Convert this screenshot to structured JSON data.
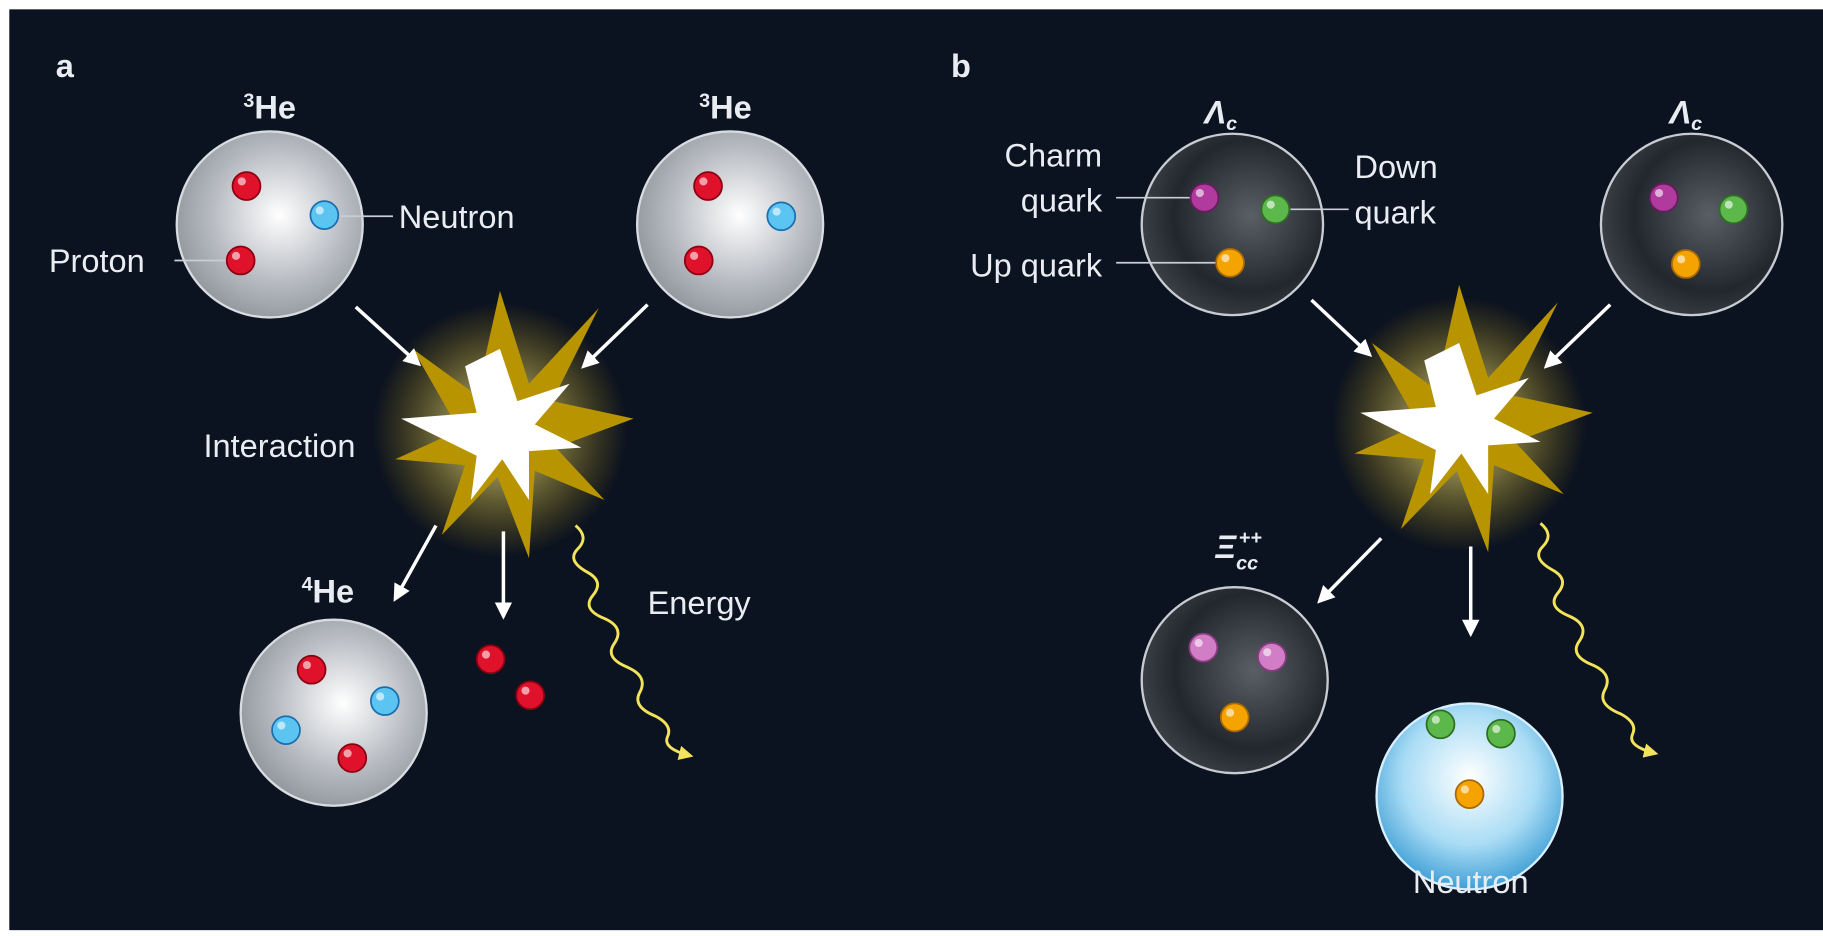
{
  "panels": [
    {
      "letter": "a",
      "left": {
        "mass": "3",
        "symbol": "He"
      },
      "right": {
        "mass": "3",
        "symbol": "He"
      },
      "neutron": "Neutron",
      "proton": "Proton",
      "interaction": "Interaction",
      "product": {
        "mass": "4",
        "symbol": "He"
      },
      "energy": "Energy"
    },
    {
      "letter": "b",
      "left": {
        "symbol": "Λ",
        "subscript": "c"
      },
      "right": {
        "symbol": "Λ",
        "subscript": "c"
      },
      "charm": [
        "Charm",
        "quark"
      ],
      "down": [
        "Down",
        "quark"
      ],
      "up": "Up quark",
      "product": {
        "symbol": "Ξ",
        "subscript": "cc",
        "superscript": "++"
      },
      "neutron": "Neutron"
    }
  ]
}
